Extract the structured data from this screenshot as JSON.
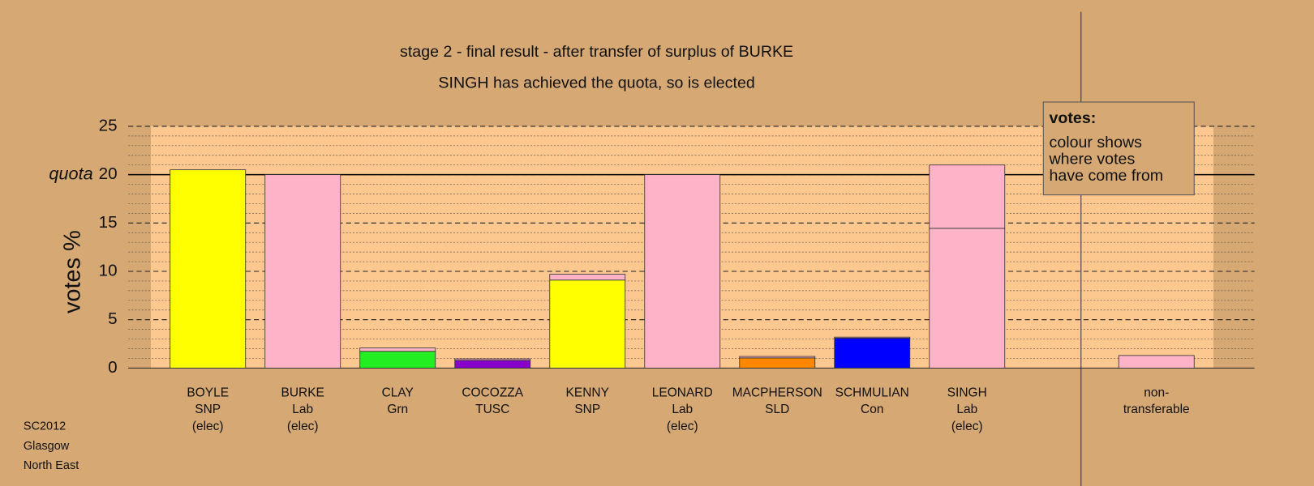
{
  "chart_data": {
    "type": "stacked-bar",
    "title": "stage 2 - final result - after transfer of surplus of BURKE",
    "subtitle": "SINGH has achieved the quota, so is elected",
    "ylabel": "votes %",
    "categories": [
      [
        "BOYLE",
        "SNP",
        "(elec)"
      ],
      [
        "BURKE",
        "Lab",
        "(elec)"
      ],
      [
        "CLAY",
        "Grn"
      ],
      [
        "COCOZZA",
        "TUSC"
      ],
      [
        "KENNY",
        "SNP"
      ],
      [
        "LEONARD",
        "Lab",
        "(elec)"
      ],
      [
        "MACPHERSON",
        "SLD"
      ],
      [
        "SCHMULIAN",
        "Con"
      ],
      [
        "SINGH",
        "Lab",
        "(elec)"
      ],
      [
        "non-",
        "transferable"
      ]
    ],
    "stacks": [
      [
        {
          "value": 20.5,
          "color": "#ffff00"
        }
      ],
      [
        {
          "value": 20.0,
          "color": "#ffb3c8"
        }
      ],
      [
        {
          "value": 1.73,
          "color": "#22ee22"
        },
        {
          "value": 0.35,
          "color": "#ffb3c8"
        }
      ],
      [
        {
          "value": 0.8,
          "color": "#8800cc"
        },
        {
          "value": 0.15,
          "color": "#ffb3c8"
        }
      ],
      [
        {
          "value": 9.1,
          "color": "#ffff00"
        },
        {
          "value": 0.6,
          "color": "#ffb3c8"
        }
      ],
      [
        {
          "value": 20.0,
          "color": "#ffb3c8"
        }
      ],
      [
        {
          "value": 1.05,
          "color": "#ff8800"
        },
        {
          "value": 0.15,
          "color": "#ffb3c8"
        }
      ],
      [
        {
          "value": 3.1,
          "color": "#0000ff"
        },
        {
          "value": 0.1,
          "color": "#ffb3c8"
        }
      ],
      [
        {
          "value": 14.45,
          "color": "#ffb3c8"
        },
        {
          "value": 6.55,
          "color": "#ffb3c8"
        }
      ],
      [
        {
          "value": 1.3,
          "color": "#ffb3c8"
        }
      ]
    ],
    "ylim": [
      0,
      25
    ],
    "yticks": [
      0,
      5,
      10,
      15,
      20,
      25
    ],
    "yminorticks": [
      1,
      2,
      3,
      4,
      6,
      7,
      8,
      9,
      11,
      12,
      13,
      14,
      16,
      17,
      18,
      19,
      21,
      22,
      23,
      24
    ],
    "quota": {
      "value": 20,
      "label": "quota"
    },
    "legend": {
      "title": "votes:",
      "lines": [
        "colour shows",
        "where votes",
        "have come from"
      ]
    },
    "footnote": [
      "SC2012",
      "Glasgow",
      "North East"
    ]
  }
}
